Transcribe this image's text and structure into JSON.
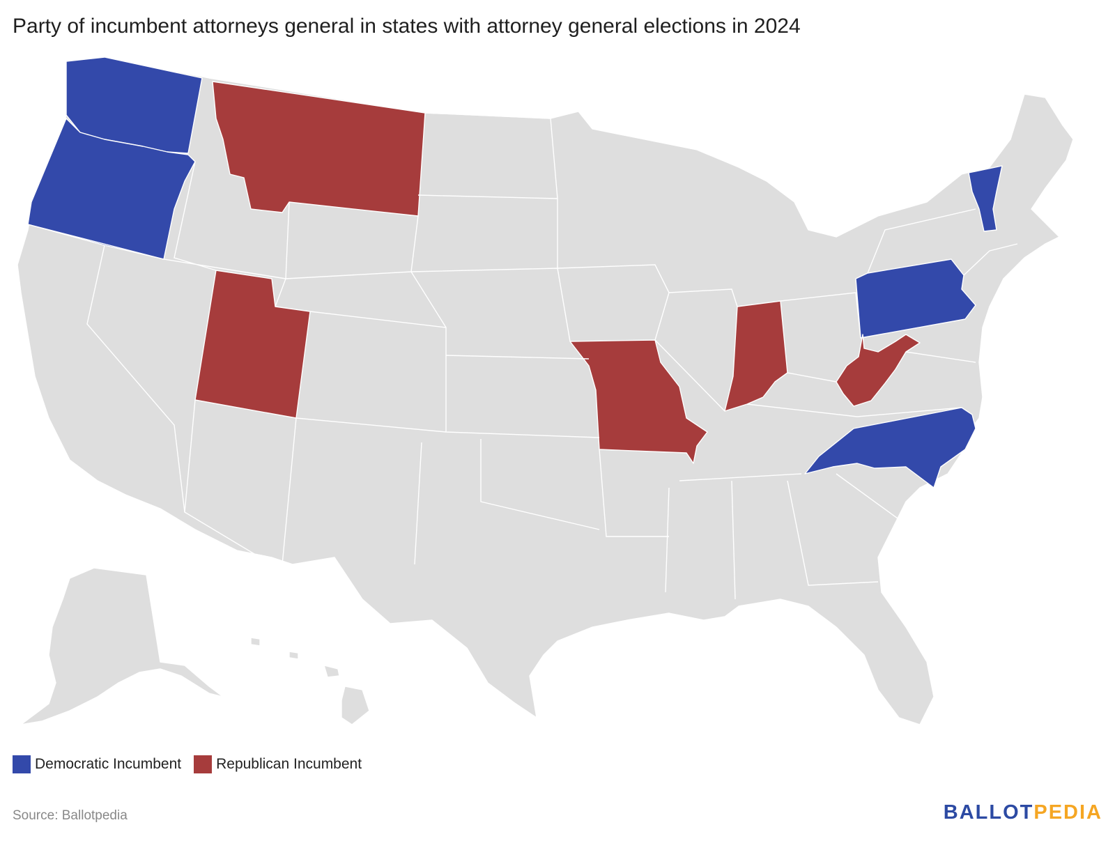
{
  "title": "Party of incumbent attorneys general in states with attorney general elections in 2024",
  "colors": {
    "democratic": "#3349aa",
    "republican": "#a63c3c",
    "no_election": "#dedede",
    "border": "#ffffff",
    "logo_primary": "#2c4aa3",
    "logo_accent": "#f5a623"
  },
  "legend": [
    {
      "label": "Democratic Incumbent",
      "party": "democratic"
    },
    {
      "label": "Republican Incumbent",
      "party": "republican"
    }
  ],
  "states": {
    "democratic": [
      "Washington",
      "Oregon",
      "Vermont",
      "Pennsylvania",
      "North Carolina"
    ],
    "republican": [
      "Montana",
      "Utah",
      "Missouri",
      "Indiana",
      "West Virginia"
    ]
  },
  "source": "Source: Ballotpedia",
  "logo": {
    "part1": "BALLOT",
    "part2": "PEDIA"
  }
}
